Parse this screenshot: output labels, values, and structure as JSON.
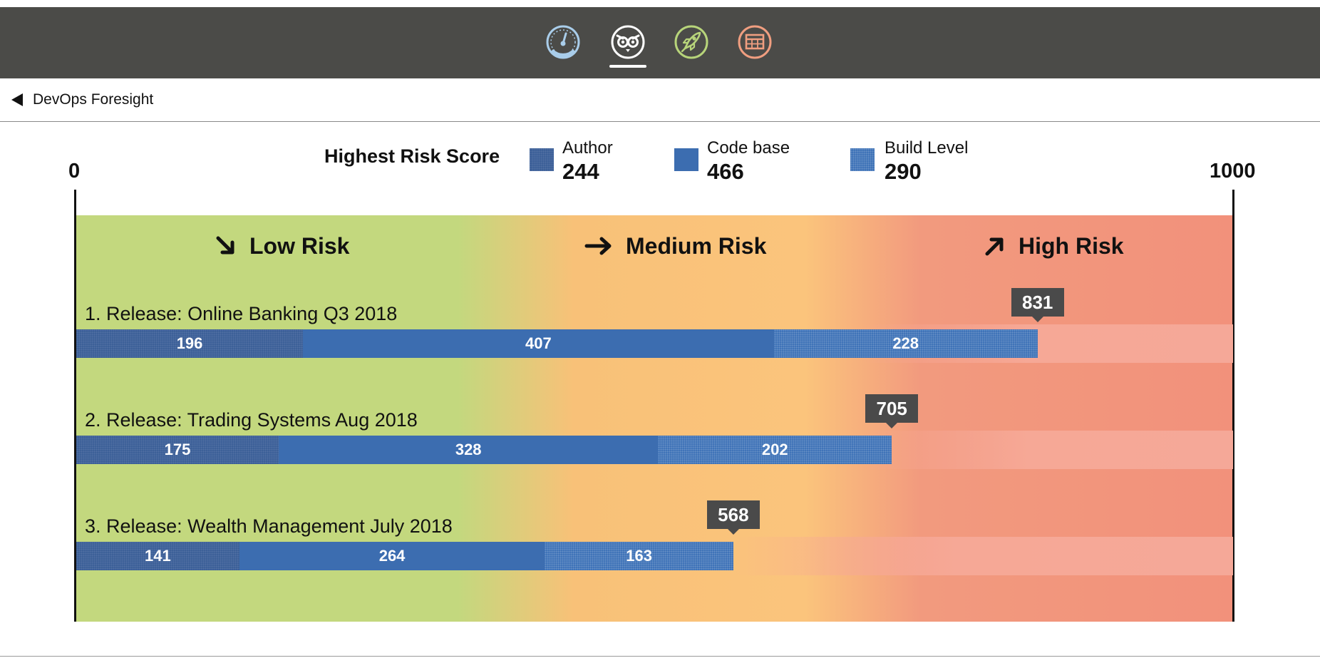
{
  "nav": {
    "icons": [
      {
        "name": "speedometer-icon",
        "color": "#a9cdea",
        "active": false
      },
      {
        "name": "owl-icon",
        "color": "#ffffff",
        "active": true
      },
      {
        "name": "rocket-icon",
        "color": "#b7d47a",
        "active": false
      },
      {
        "name": "table-grid-icon",
        "color": "#f09e80",
        "active": false
      }
    ]
  },
  "breadcrumb": {
    "back_label": "DevOps Foresight"
  },
  "legend": {
    "title": "Highest Risk Score",
    "items": [
      {
        "label": "Author",
        "value": "244",
        "color": "#3b5f98"
      },
      {
        "label": "Code base",
        "value": "466",
        "color": "#3c6db0"
      },
      {
        "label": "Build Level",
        "value": "290",
        "color": "#3f73b7"
      }
    ]
  },
  "scale": {
    "min_label": "0",
    "max_label": "1000",
    "min": 0,
    "max": 1000
  },
  "zones": [
    {
      "label": "Low Risk",
      "arrow": "arrow-down-right-icon"
    },
    {
      "label": "Medium Risk",
      "arrow": "arrow-right-icon"
    },
    {
      "label": "High Risk",
      "arrow": "arrow-up-right-icon"
    }
  ],
  "colors": {
    "low": "#c3d87e",
    "medium": "#fbc47c",
    "high": "#f2917b",
    "tag": "#4a4a4a"
  },
  "chart_data": {
    "type": "bar",
    "orientation": "horizontal",
    "stacked": true,
    "categories": [
      "1. Release: Online Banking Q3 2018",
      "2. Release: Trading Systems Aug 2018",
      "3. Release: Wealth Management July 2018"
    ],
    "series": [
      {
        "name": "Author",
        "values": [
          196,
          175,
          141
        ]
      },
      {
        "name": "Code base",
        "values": [
          407,
          328,
          264
        ]
      },
      {
        "name": "Build Level",
        "values": [
          228,
          202,
          163
        ]
      }
    ],
    "totals": [
      831,
      705,
      568
    ],
    "xlim": [
      0,
      1000
    ]
  },
  "rows": [
    {
      "title": "1. Release: Online Banking Q3 2018",
      "author": "196",
      "code": "407",
      "build": "228",
      "total": "831"
    },
    {
      "title": "2. Release: Trading Systems Aug 2018",
      "author": "175",
      "code": "328",
      "build": "202",
      "total": "705"
    },
    {
      "title": "3. Release: Wealth Management July 2018",
      "author": "141",
      "code": "264",
      "build": "163",
      "total": "568"
    }
  ]
}
